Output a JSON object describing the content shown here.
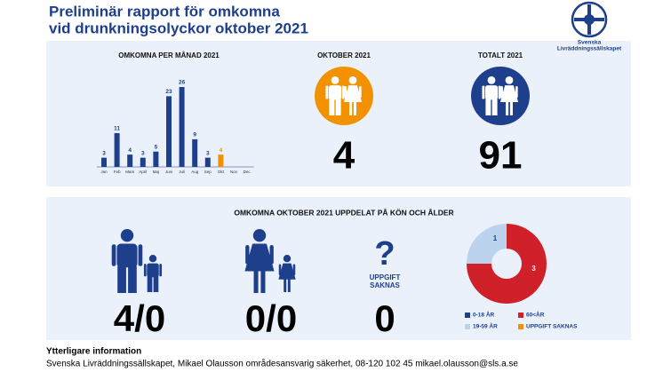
{
  "header": {
    "title_lines": [
      "Preliminär rapport för omkomna",
      "vid drunkningsolyckor oktober 2021"
    ],
    "logo_lines": [
      "Svenska",
      "Livräddningssällskapet"
    ]
  },
  "chart_data": [
    {
      "type": "bar",
      "title": "OMKOMNA PER MÅNAD 2021",
      "categories": [
        "Jan",
        "Feb",
        "Mars",
        "April",
        "Maj",
        "Juni",
        "Juli",
        "Aug",
        "Sep",
        "Okt",
        "Nov",
        "Dec"
      ],
      "values": [
        3,
        11,
        4,
        3,
        5,
        23,
        26,
        9,
        3,
        4,
        null,
        null
      ],
      "colors": [
        "#1d3f8c",
        "#1d3f8c",
        "#1d3f8c",
        "#1d3f8c",
        "#1d3f8c",
        "#1d3f8c",
        "#1d3f8c",
        "#1d3f8c",
        "#1d3f8c",
        "#f39200",
        "#1d3f8c",
        "#1d3f8c"
      ]
    },
    {
      "type": "donut",
      "categories": [
        "0-18 ÅR",
        "60<ÅR",
        "19-59 ÅR",
        "UPPGIFT SAKNAS"
      ],
      "values": [
        0,
        3,
        1,
        0
      ],
      "colors": [
        "#1d3f8c",
        "#d0202a",
        "#bcd3ee",
        "#f39200"
      ]
    }
  ],
  "stats": {
    "october": {
      "title": "OKTOBER 2021",
      "value": 4,
      "color": "#f39200"
    },
    "total": {
      "title": "TOTALT 2021",
      "value": 91,
      "color": "#1d3f8c"
    }
  },
  "breakdown": {
    "title": "OMKOMNA OKTOBER 2021 UPPDELAT PÅ KÖN OCH ÅLDER",
    "men": "4/0",
    "women": "0/0",
    "unknown_lines": [
      "UPPGIFT",
      "SAKNAS"
    ],
    "unknown_value": 0
  },
  "footer": {
    "heading": "Ytterligare information",
    "text": "Svenska Livräddningssällskapet, Mikael Olausson områdesansvarig säkerhet, 08-120 102 45 mikael.olausson@sls.a.se"
  }
}
